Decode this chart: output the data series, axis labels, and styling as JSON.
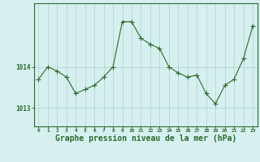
{
  "x": [
    0,
    1,
    2,
    3,
    4,
    5,
    6,
    7,
    8,
    9,
    10,
    11,
    12,
    13,
    14,
    15,
    16,
    17,
    18,
    19,
    20,
    21,
    22,
    23
  ],
  "y": [
    1013.7,
    1014.0,
    1013.9,
    1013.75,
    1013.35,
    1013.45,
    1013.55,
    1013.75,
    1014.0,
    1015.1,
    1015.1,
    1014.7,
    1014.55,
    1014.45,
    1014.0,
    1013.85,
    1013.75,
    1013.8,
    1013.35,
    1013.1,
    1013.55,
    1013.7,
    1014.2,
    1015.0
  ],
  "line_color": "#2d6a2d",
  "marker": "+",
  "marker_size": 4,
  "marker_color": "#2d6a2d",
  "bg_color": "#d6f0f0",
  "grid_color": "#b8dada",
  "axis_label_color": "#2d6a2d",
  "tick_color": "#2d6a2d",
  "xlabel": "Graphe pression niveau de la mer (hPa)",
  "xlabel_fontsize": 7,
  "ytick_labels": [
    "1013",
    "1014"
  ],
  "ytick_values": [
    1013.0,
    1014.0
  ],
  "ylim": [
    1012.55,
    1015.55
  ],
  "xlim": [
    -0.5,
    23.5
  ],
  "border_color": "#2d6a2d"
}
